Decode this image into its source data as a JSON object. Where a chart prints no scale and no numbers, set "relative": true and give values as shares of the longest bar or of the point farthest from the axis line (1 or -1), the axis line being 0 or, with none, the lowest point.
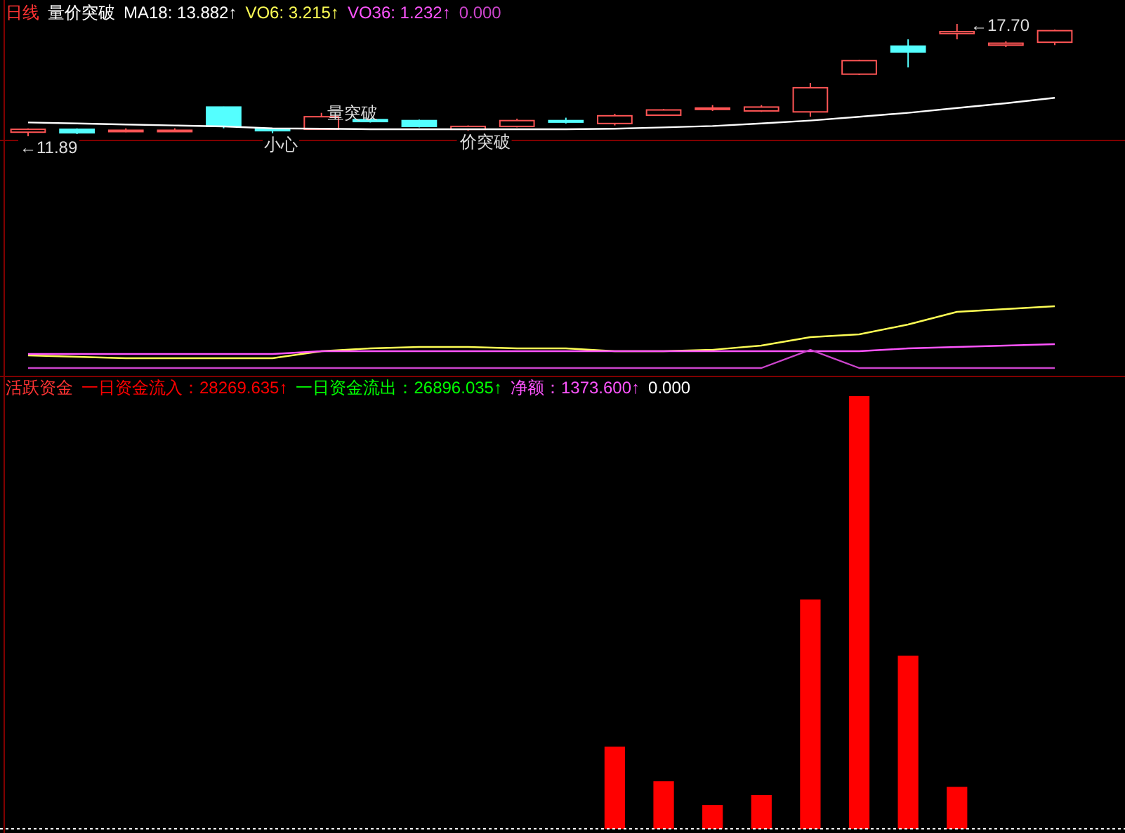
{
  "chart_data": [
    {
      "type": "candlestick",
      "title": "日线",
      "subtitle": "量价突破",
      "legend": "top left",
      "categories": [
        null,
        null,
        null,
        null,
        null,
        null,
        null,
        null,
        null,
        null,
        null,
        null,
        null,
        null,
        null,
        null,
        null,
        null,
        null,
        null,
        null,
        null
      ],
      "ohlc": [
        [
          12.1,
          12.3,
          11.89,
          12.25
        ],
        [
          12.25,
          12.3,
          12.0,
          12.07
        ],
        [
          12.15,
          12.3,
          12.1,
          12.2
        ],
        [
          12.15,
          12.3,
          12.12,
          12.2
        ],
        [
          13.4,
          13.42,
          12.3,
          12.4
        ],
        [
          12.25,
          12.3,
          12.05,
          12.18
        ],
        [
          12.25,
          13.1,
          12.22,
          12.9
        ],
        [
          12.75,
          12.8,
          12.6,
          12.65
        ],
        [
          12.7,
          12.75,
          12.35,
          12.4
        ],
        [
          12.25,
          12.45,
          12.18,
          12.4
        ],
        [
          12.4,
          12.8,
          12.35,
          12.7
        ],
        [
          12.7,
          12.85,
          12.55,
          12.62
        ],
        [
          12.55,
          13.05,
          12.45,
          12.95
        ],
        [
          12.98,
          13.3,
          12.95,
          13.25
        ],
        [
          13.3,
          13.5,
          13.2,
          13.35
        ],
        [
          13.2,
          13.5,
          13.15,
          13.4
        ],
        [
          13.15,
          14.65,
          12.9,
          14.4
        ],
        [
          15.1,
          15.85,
          15.05,
          15.8
        ],
        [
          16.55,
          16.9,
          15.45,
          16.25
        ],
        [
          17.2,
          17.7,
          16.9,
          17.3
        ],
        [
          16.6,
          16.8,
          16.5,
          16.7
        ],
        [
          16.75,
          17.4,
          16.6,
          17.35
        ]
      ],
      "colors": [
        "#ff5555",
        "#54ffff",
        "#ff5555",
        "#ff5555",
        "#54ffff",
        "#54ffff",
        "#ff5555",
        "#54ffff",
        "#54ffff",
        "#ff5555",
        "#ff5555",
        "#54ffff",
        "#ff5555",
        "#ff5555",
        "#ff5555",
        "#ff5555",
        "#ff5555",
        "#ff5555",
        "#54ffff",
        "#ff5555",
        "#ff5555",
        "#ff5555"
      ],
      "series": [
        {
          "name": "MA18: 13.882↑",
          "type": "line",
          "color": "#ffffff",
          "values": [
            12.6,
            12.55,
            12.5,
            12.45,
            12.4,
            12.3,
            12.28,
            12.25,
            12.25,
            12.25,
            12.25,
            12.25,
            12.28,
            12.35,
            12.42,
            12.55,
            12.7,
            12.9,
            13.1,
            13.35,
            13.6,
            13.88
          ]
        }
      ],
      "annotations": [
        {
          "text": "←11.89",
          "y": 11.89
        },
        "←17.70",
        {
          "text": "小心",
          "y": 12.05
        },
        {
          "text": "量突破",
          "y": 13.1
        },
        {
          "text": "价突破",
          "y": 12.18
        }
      ]
    },
    {
      "type": "line",
      "relative": true,
      "legend": "top left",
      "categories": [
        null,
        null,
        null,
        null,
        null,
        null,
        null,
        null,
        null,
        null,
        null,
        null,
        null,
        null,
        null,
        null,
        null,
        null,
        null,
        null,
        null,
        null
      ],
      "series": [
        {
          "name": "VO6: 3.215↑",
          "color": "#ffff55",
          "values": [
            0.3,
            0.28,
            0.26,
            0.26,
            0.26,
            0.26,
            0.36,
            0.4,
            0.42,
            0.42,
            0.4,
            0.4,
            0.36,
            0.36,
            0.38,
            0.44,
            0.56,
            0.6,
            0.74,
            0.92,
            0.96,
            1
          ]
        },
        {
          "name": "VO36: 1.232↑",
          "color": "#ff55ff",
          "values": [
            0.32,
            0.32,
            0.32,
            0.32,
            0.32,
            0.32,
            0.36,
            0.36,
            0.36,
            0.36,
            0.36,
            0.36,
            0.36,
            0.36,
            0.36,
            0.36,
            0.36,
            0.36,
            0.4,
            0.42,
            0.44,
            0.46
          ]
        },
        {
          "name": "0.000",
          "color": "#cc44cc",
          "values": [
            0.12,
            0.12,
            0.12,
            0.12,
            0.12,
            0.12,
            0.12,
            0.12,
            0.12,
            0.12,
            0.12,
            0.12,
            0.12,
            0.12,
            0.12,
            0.12,
            0.38,
            0.12,
            0.12,
            0.12,
            0.12,
            0.12
          ]
        }
      ]
    },
    {
      "type": "bar",
      "relative": true,
      "title": "活跃资金",
      "legend": "top left",
      "categories": [
        null,
        null,
        null,
        null,
        null,
        null,
        null,
        null,
        null,
        null,
        null,
        null,
        null,
        null,
        null,
        null,
        null,
        null,
        null,
        null,
        null,
        null
      ],
      "series": [
        {
          "name": "一日资金流入：28269.635↑",
          "color": "#ff0000",
          "values": [
            null,
            null,
            null,
            null,
            null,
            null,
            null,
            null,
            null,
            null,
            null,
            null,
            0.19,
            0.11,
            0.055,
            0.078,
            0.53,
            1,
            0.4,
            0.097,
            null,
            null
          ]
        },
        {
          "name": "一日资金流出：26896.035↑",
          "type": "line",
          "color": "#00ff00",
          "values": [
            null,
            null,
            null,
            null,
            null,
            null,
            null,
            null,
            null,
            null,
            null,
            null,
            null,
            null,
            null,
            null,
            null,
            null,
            null,
            null,
            null,
            null
          ]
        },
        {
          "name": "净额：1373.600↑",
          "type": "line",
          "color": "#ff55ff",
          "values": [
            null,
            null,
            null,
            null,
            null,
            null,
            null,
            null,
            null,
            null,
            null,
            null,
            null,
            null,
            null,
            null,
            null,
            null,
            null,
            null,
            null,
            null
          ]
        },
        {
          "name": "0.000",
          "type": "line",
          "color": "#ffffff",
          "values": [
            null,
            null,
            null,
            null,
            null,
            null,
            null,
            null,
            null,
            null,
            null,
            null,
            null,
            null,
            null,
            null,
            null,
            null,
            null,
            null,
            null,
            null
          ]
        }
      ]
    }
  ]
}
